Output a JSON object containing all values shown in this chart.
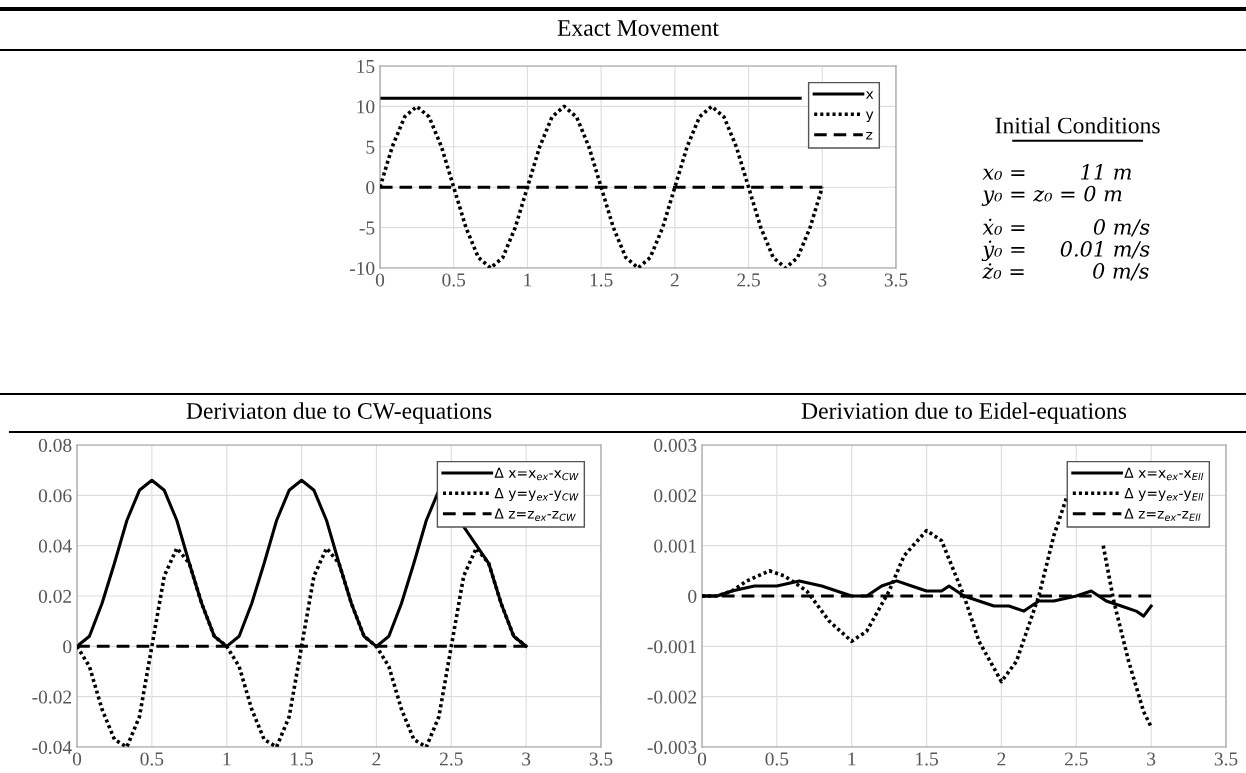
{
  "chart_data": [
    {
      "type": "line",
      "title": "Exact Movement",
      "xlim": [
        0,
        3.5
      ],
      "xticks": [
        0,
        0.5,
        1,
        1.5,
        2,
        2.5,
        3,
        3.5
      ],
      "ylim": [
        -10,
        15
      ],
      "yticks": [
        -10,
        -5,
        0,
        5,
        10,
        15
      ],
      "grid": true,
      "legend": "top right",
      "series": [
        {
          "name": "x",
          "color": "#000000",
          "line_style": "solid",
          "x": [
            0,
            0.5,
            1,
            1.5,
            2,
            2.5,
            2.85
          ],
          "values": [
            11,
            11,
            11,
            11,
            11,
            11,
            11
          ]
        },
        {
          "name": "y",
          "color": "#000000",
          "line_style": "dotted",
          "x": [
            0,
            0.083,
            0.167,
            0.25,
            0.333,
            0.417,
            0.5,
            0.583,
            0.667,
            0.75,
            0.833,
            0.917,
            1,
            1.083,
            1.167,
            1.25,
            1.333,
            1.417,
            1.5,
            1.583,
            1.667,
            1.75,
            1.833,
            1.917,
            2,
            2.083,
            2.167,
            2.25,
            2.333,
            2.417,
            2.5,
            2.583,
            2.667,
            2.75,
            2.833,
            2.917,
            3
          ],
          "values": [
            0,
            5,
            8.7,
            10,
            8.7,
            5,
            0,
            -5,
            -8.7,
            -10,
            -8.7,
            -5,
            0,
            5,
            8.7,
            10,
            8.7,
            5,
            0,
            -5,
            -8.7,
            -10,
            -8.7,
            -5,
            0,
            5,
            8.7,
            10,
            8.7,
            5,
            0,
            -5,
            -8.7,
            -10,
            -8.7,
            -5,
            0
          ]
        },
        {
          "name": "z",
          "color": "#000000",
          "line_style": "dashed",
          "x": [
            0,
            3
          ],
          "values": [
            0,
            0
          ]
        }
      ]
    },
    {
      "type": "other",
      "title": "Initial Conditions",
      "annotations": [
        "x₀ =        11 m",
        "y₀ = z₀ = 0 m",
        "ẋ₀ =          0 m/s",
        "ẏ₀ =     0.01 m/s",
        "ż₀ =          0 m/s"
      ]
    },
    {
      "type": "line",
      "title": "Deriviaton due to CW-equations",
      "xlim": [
        0,
        3.5
      ],
      "xticks": [
        0,
        0.5,
        1,
        1.5,
        2,
        2.5,
        3,
        3.5
      ],
      "ylim": [
        -0.04,
        0.08
      ],
      "yticks": [
        -0.04,
        -0.02,
        0,
        0.02,
        0.04,
        0.06,
        0.08
      ],
      "grid": true,
      "legend": "top right",
      "series": [
        {
          "name": "Δ x=x$_{ex}$-x$_{CW}$",
          "color": "#000000",
          "line_style": "solid",
          "x": [
            0,
            0.083,
            0.167,
            0.25,
            0.333,
            0.417,
            0.5,
            0.583,
            0.667,
            0.75,
            0.833,
            0.917,
            1,
            1.083,
            1.167,
            1.25,
            1.333,
            1.417,
            1.5,
            1.583,
            1.667,
            1.75,
            1.833,
            1.917,
            2,
            2.083,
            2.167,
            2.25,
            2.333,
            2.417,
            2.75,
            2.833,
            2.917,
            3
          ],
          "values": [
            0,
            0.004,
            0.017,
            0.033,
            0.05,
            0.062,
            0.066,
            0.062,
            0.05,
            0.033,
            0.017,
            0.004,
            0,
            0.004,
            0.017,
            0.033,
            0.05,
            0.062,
            0.066,
            0.062,
            0.05,
            0.033,
            0.017,
            0.004,
            0,
            0.004,
            0.017,
            0.033,
            0.05,
            0.062,
            0.033,
            0.017,
            0.004,
            0
          ]
        },
        {
          "name": "Δ y=y$_{ex}$-y$_{CW}$",
          "color": "#000000",
          "line_style": "dotted",
          "x": [
            0,
            0.083,
            0.167,
            0.25,
            0.333,
            0.417,
            0.5,
            0.583,
            0.667,
            0.75,
            0.833,
            0.917,
            1,
            1.083,
            1.167,
            1.25,
            1.333,
            1.417,
            1.5,
            1.583,
            1.667,
            1.75,
            1.833,
            1.917,
            2,
            2.083,
            2.167,
            2.25,
            2.333,
            2.417,
            2.5,
            2.583,
            2.667,
            2.75,
            2.833,
            2.917,
            3
          ],
          "values": [
            0,
            -0.008,
            -0.025,
            -0.037,
            -0.04,
            -0.028,
            0,
            0.028,
            0.039,
            0.033,
            0.017,
            0.004,
            0,
            -0.008,
            -0.025,
            -0.037,
            -0.04,
            -0.028,
            0,
            0.028,
            0.039,
            0.033,
            0.017,
            0.004,
            0,
            -0.008,
            -0.025,
            -0.037,
            -0.04,
            -0.028,
            0,
            0.028,
            0.039,
            0.033,
            0.017,
            0.004,
            0
          ]
        },
        {
          "name": "Δ z=z$_{ex}$-z$_{CW}$",
          "color": "#000000",
          "line_style": "dashed",
          "x": [
            0,
            3
          ],
          "values": [
            0,
            0
          ]
        }
      ]
    },
    {
      "type": "line",
      "title": "Deriviation due to Eidel-equations",
      "xlim": [
        0,
        3.5
      ],
      "xticks": [
        0,
        0.5,
        1,
        1.5,
        2,
        2.5,
        3,
        3.5
      ],
      "ylim": [
        -0.003,
        0.003
      ],
      "yticks": [
        -0.003,
        -0.002,
        -0.001,
        0,
        0.001,
        0.002,
        0.003
      ],
      "grid": true,
      "legend": "top right",
      "series": [
        {
          "name": "Δ x=x$_{ex}$-x$_{Ell}$",
          "color": "#000000",
          "line_style": "solid",
          "x": [
            0,
            0.1,
            0.2,
            0.35,
            0.5,
            0.65,
            0.8,
            0.9,
            1.0,
            1.1,
            1.2,
            1.3,
            1.4,
            1.5,
            1.6,
            1.65,
            1.75,
            1.85,
            1.95,
            2.05,
            2.15,
            2.25,
            2.35,
            2.5,
            2.6,
            2.7,
            2.8,
            2.9,
            2.95,
            3.0
          ],
          "values": [
            0,
            0,
            0.0001,
            0.0002,
            0.0002,
            0.0003,
            0.0002,
            0.0001,
            0,
            0,
            0.0002,
            0.0003,
            0.0002,
            0.0001,
            0.0001,
            0.0002,
            0,
            -0.0001,
            -0.0002,
            -0.0002,
            -0.0003,
            -0.0001,
            -0.0001,
            0,
            0.0001,
            -0.0001,
            -0.0002,
            -0.0003,
            -0.0004,
            -0.0002
          ]
        },
        {
          "name": "Δ y=y$_{ex}$-y$_{Ell}$",
          "color": "#000000",
          "line_style": "dotted",
          "x": [
            0,
            0.1,
            0.2,
            0.3,
            0.45,
            0.55,
            0.7,
            0.85,
            1.0,
            1.1,
            1.25,
            1.35,
            1.5,
            1.6,
            1.75,
            1.85,
            2.0,
            2.1,
            2.25,
            2.35,
            2.44,
            2.55,
            2.68,
            2.75,
            2.85,
            2.95,
            3.0
          ],
          "values": [
            0,
            0,
            0.0001,
            0.0003,
            0.0005,
            0.0004,
            0.0001,
            -0.0005,
            -0.0009,
            -0.0007,
            0.0001,
            0.0008,
            0.0013,
            0.0011,
            0,
            -0.0009,
            -0.0017,
            -0.0013,
            0,
            0.0012,
            0.002,
            null,
            0.001,
            -0.0001,
            -0.0013,
            -0.0023,
            -0.0026
          ]
        },
        {
          "name": "Δ z=z$_{ex}$-z$_{Ell}$",
          "color": "#000000",
          "line_style": "dashed",
          "x": [
            0,
            3
          ],
          "values": [
            0,
            0
          ]
        }
      ]
    }
  ]
}
